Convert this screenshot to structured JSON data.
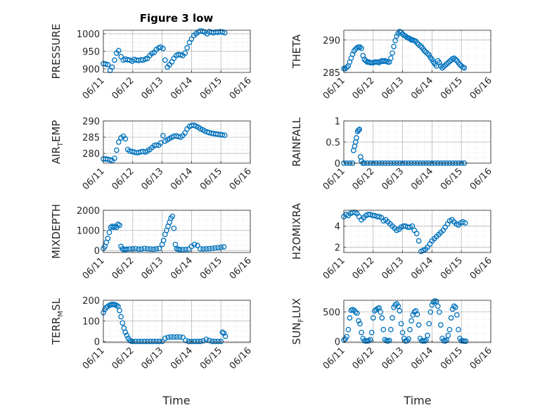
{
  "figure": {
    "title": "Figure 3 low",
    "xlabel": "Time"
  },
  "colors": {
    "marker": "#0072BD",
    "axis": "#262626",
    "grid": "#b0b0b0",
    "minor_grid": "#d6d6d6"
  },
  "chart_data": [
    {
      "type": "scatter",
      "title": "Figure 3 low",
      "ylabel": "PRESSURE",
      "ylabel_parts": [
        "PRESSURE"
      ],
      "ylim": [
        890,
        1010
      ],
      "yticks": [
        900,
        950,
        1000
      ],
      "yticklabels": [
        "900",
        "950",
        "1000"
      ],
      "xlim": [
        0,
        5
      ],
      "grid": true,
      "x": [
        0.0,
        0.08,
        0.15,
        0.23,
        0.3,
        0.38,
        0.45,
        0.52,
        0.6,
        0.68,
        0.75,
        0.83,
        0.9,
        0.98,
        1.05,
        1.13,
        1.2,
        1.28,
        1.35,
        1.43,
        1.5,
        1.58,
        1.65,
        1.73,
        1.8,
        1.88,
        1.95,
        2.03,
        2.1,
        2.18,
        2.25,
        2.33,
        2.4,
        2.48,
        2.55,
        2.63,
        2.7,
        2.78,
        2.85,
        2.93,
        3.0,
        3.08,
        3.15,
        3.23,
        3.3,
        3.38,
        3.45,
        3.53,
        3.6,
        3.68,
        3.75,
        3.83,
        3.9,
        3.98,
        4.05,
        4.13
      ],
      "y": [
        915,
        914,
        912,
        896,
        905,
        925,
        945,
        952,
        935,
        925,
        928,
        926,
        925,
        922,
        927,
        925,
        924,
        926,
        925,
        928,
        930,
        938,
        944,
        947,
        955,
        960,
        962,
        958,
        925,
        905,
        912,
        920,
        930,
        938,
        941,
        940,
        938,
        945,
        960,
        975,
        985,
        995,
        1000,
        1005,
        1008,
        1007,
        1005,
        1000,
        1006,
        1004,
        1003,
        1005,
        1004,
        1006,
        1005,
        1003
      ]
    },
    {
      "type": "scatter",
      "ylabel": "THETA",
      "ylabel_parts": [
        "THETA"
      ],
      "ylim": [
        285,
        291.5
      ],
      "yticks": [
        285,
        290
      ],
      "yticklabels": [
        "285",
        "290"
      ],
      "xlim": [
        0,
        5
      ],
      "grid": true,
      "x": [
        0.0,
        0.05,
        0.1,
        0.15,
        0.2,
        0.25,
        0.3,
        0.35,
        0.4,
        0.45,
        0.5,
        0.55,
        0.6,
        0.65,
        0.7,
        0.75,
        0.8,
        0.85,
        0.9,
        0.95,
        1.0,
        1.05,
        1.1,
        1.15,
        1.2,
        1.25,
        1.3,
        1.35,
        1.4,
        1.45,
        1.5,
        1.55,
        1.6,
        1.65,
        1.7,
        1.75,
        1.8,
        1.85,
        1.9,
        1.95,
        2.0,
        2.05,
        2.1,
        2.15,
        2.2,
        2.25,
        2.3,
        2.35,
        2.4,
        2.45,
        2.5,
        2.55,
        2.6,
        2.65,
        2.7,
        2.75,
        2.8,
        2.85,
        2.9,
        2.95,
        3.0,
        3.05,
        3.1,
        3.15,
        3.2,
        3.25,
        3.3,
        3.35,
        3.4,
        3.45,
        3.5,
        3.55,
        3.6,
        3.65,
        3.7,
        3.75,
        3.8,
        3.85,
        3.9,
        3.95,
        4.0,
        4.05,
        4.1
      ],
      "y": [
        285.6,
        285.6,
        285.8,
        286.0,
        286.6,
        287.2,
        287.8,
        288.3,
        288.6,
        288.8,
        288.9,
        288.9,
        288.7,
        287.6,
        287.0,
        286.8,
        286.6,
        286.6,
        286.5,
        286.5,
        286.5,
        286.6,
        286.6,
        286.6,
        286.5,
        286.7,
        286.8,
        286.7,
        286.8,
        286.7,
        286.6,
        286.6,
        287.2,
        288.0,
        289.0,
        289.9,
        290.6,
        291.0,
        291.3,
        291.2,
        290.9,
        290.7,
        290.6,
        290.4,
        290.3,
        290.2,
        290.0,
        290.0,
        289.9,
        289.8,
        289.5,
        289.3,
        289.1,
        288.9,
        288.6,
        288.3,
        288.1,
        287.9,
        287.7,
        287.3,
        287.0,
        286.6,
        286.3,
        286.0,
        286.8,
        286.5,
        286.0,
        285.7,
        285.9,
        286.1,
        286.3,
        286.5,
        286.7,
        286.9,
        287.1,
        287.2,
        287.0,
        286.8,
        286.5,
        286.2,
        286.0,
        285.8,
        285.7
      ]
    },
    {
      "type": "scatter",
      "ylabel": "AIR_TEMP",
      "ylabel_parts": [
        "AIR",
        "T",
        "EMP"
      ],
      "ylim": [
        277,
        290
      ],
      "yticks": [
        280,
        285,
        290
      ],
      "yticklabels": [
        "280",
        "285",
        "290"
      ],
      "xlim": [
        0,
        5
      ],
      "grid": true,
      "x": [
        0.0,
        0.08,
        0.15,
        0.23,
        0.3,
        0.38,
        0.45,
        0.52,
        0.6,
        0.68,
        0.75,
        0.83,
        0.9,
        0.98,
        1.05,
        1.13,
        1.2,
        1.28,
        1.35,
        1.43,
        1.5,
        1.58,
        1.65,
        1.73,
        1.8,
        1.88,
        1.95,
        2.03,
        2.1,
        2.18,
        2.25,
        2.33,
        2.4,
        2.48,
        2.55,
        2.63,
        2.7,
        2.78,
        2.85,
        2.93,
        3.0,
        3.08,
        3.15,
        3.23,
        3.3,
        3.38,
        3.45,
        3.53,
        3.6,
        3.68,
        3.75,
        3.83,
        3.9,
        3.98,
        4.05,
        4.13
      ],
      "y": [
        278.3,
        278.3,
        278.2,
        278.0,
        277.8,
        278.5,
        281.0,
        283.5,
        284.8,
        285.3,
        284.5,
        281.2,
        280.7,
        280.6,
        280.4,
        280.2,
        280.3,
        280.5,
        280.6,
        280.4,
        280.8,
        281.2,
        281.8,
        282.4,
        282.6,
        282.5,
        283.2,
        285.5,
        283.8,
        284.2,
        284.6,
        285.0,
        285.3,
        285.4,
        285.2,
        285.0,
        285.5,
        286.3,
        287.5,
        288.3,
        288.6,
        288.7,
        288.4,
        288.1,
        287.6,
        287.3,
        286.9,
        286.6,
        286.4,
        286.2,
        286.1,
        286.0,
        285.9,
        285.8,
        285.7,
        285.6
      ]
    },
    {
      "type": "scatter",
      "ylabel": "RAINFALL",
      "ylabel_parts": [
        "RAINFALL"
      ],
      "ylim": [
        0,
        1
      ],
      "yticks": [
        0,
        0.5,
        1
      ],
      "yticklabels": [
        "0",
        "0.5",
        "1"
      ],
      "xlim": [
        0,
        5
      ],
      "grid": true,
      "x": [
        0.0,
        0.1,
        0.2,
        0.3,
        0.33,
        0.37,
        0.4,
        0.43,
        0.47,
        0.5,
        0.53,
        0.57,
        0.6,
        0.65,
        0.7,
        0.8,
        0.9,
        1.0,
        1.1,
        1.2,
        1.3,
        1.4,
        1.5,
        1.6,
        1.7,
        1.8,
        1.9,
        2.0,
        2.1,
        2.2,
        2.3,
        2.4,
        2.5,
        2.6,
        2.7,
        2.8,
        2.9,
        3.0,
        3.1,
        3.2,
        3.3,
        3.4,
        3.5,
        3.6,
        3.7,
        3.8,
        3.9,
        4.0,
        4.1
      ],
      "y": [
        0,
        0,
        0,
        0,
        0.3,
        0.4,
        0.5,
        0.6,
        0.75,
        0.78,
        0.8,
        0.15,
        0.05,
        0,
        0,
        0,
        0,
        0,
        0,
        0,
        0,
        0,
        0,
        0,
        0,
        0,
        0,
        0,
        0,
        0,
        0,
        0,
        0,
        0,
        0,
        0,
        0,
        0,
        0,
        0,
        0,
        0,
        0,
        0,
        0,
        0,
        0,
        0,
        0
      ]
    },
    {
      "type": "scatter",
      "ylabel": "MIXDEPTH",
      "ylabel_parts": [
        "MIXDEPTH"
      ],
      "ylim": [
        -100,
        2000
      ],
      "yticks": [
        0,
        1000,
        2000
      ],
      "yticklabels": [
        "0",
        "1000",
        "2000"
      ],
      "xlim": [
        0,
        5
      ],
      "grid": true,
      "x": [
        0.0,
        0.05,
        0.1,
        0.15,
        0.2,
        0.25,
        0.3,
        0.35,
        0.4,
        0.45,
        0.5,
        0.55,
        0.6,
        0.65,
        0.7,
        0.75,
        0.8,
        0.9,
        1.0,
        1.1,
        1.2,
        1.3,
        1.4,
        1.5,
        1.6,
        1.7,
        1.8,
        1.9,
        2.0,
        2.05,
        2.1,
        2.15,
        2.2,
        2.25,
        2.3,
        2.35,
        2.4,
        2.45,
        2.5,
        2.55,
        2.6,
        2.7,
        2.8,
        2.9,
        3.0,
        3.1,
        3.2,
        3.3,
        3.4,
        3.5,
        3.6,
        3.7,
        3.8,
        3.9,
        4.0,
        4.1
      ],
      "y": [
        100,
        200,
        400,
        600,
        900,
        1150,
        1200,
        1150,
        1200,
        1150,
        1300,
        1250,
        200,
        80,
        40,
        50,
        60,
        70,
        80,
        90,
        60,
        70,
        100,
        80,
        70,
        60,
        80,
        100,
        300,
        500,
        800,
        1000,
        1200,
        1400,
        1600,
        1700,
        1100,
        300,
        80,
        60,
        50,
        40,
        50,
        60,
        200,
        300,
        250,
        80,
        70,
        80,
        90,
        100,
        120,
        140,
        160,
        180
      ]
    },
    {
      "type": "scatter",
      "ylabel": "H2OMIXRA",
      "ylabel_parts": [
        "H2OMIXRA"
      ],
      "ylim": [
        1.5,
        5.5
      ],
      "yticks": [
        2,
        4
      ],
      "yticklabels": [
        "2",
        "4"
      ],
      "xlim": [
        0,
        5
      ],
      "grid": true,
      "x": [
        0.0,
        0.08,
        0.15,
        0.23,
        0.3,
        0.38,
        0.45,
        0.52,
        0.6,
        0.68,
        0.75,
        0.83,
        0.9,
        0.98,
        1.05,
        1.13,
        1.2,
        1.28,
        1.35,
        1.43,
        1.5,
        1.58,
        1.65,
        1.73,
        1.8,
        1.88,
        1.95,
        2.03,
        2.1,
        2.18,
        2.25,
        2.33,
        2.4,
        2.48,
        2.55,
        2.63,
        2.7,
        2.78,
        2.85,
        2.93,
        3.0,
        3.08,
        3.15,
        3.23,
        3.3,
        3.38,
        3.45,
        3.53,
        3.6,
        3.68,
        3.75,
        3.83,
        3.9,
        3.98,
        4.05,
        4.13
      ],
      "y": [
        4.9,
        5.1,
        5.0,
        5.2,
        5.3,
        5.3,
        5.2,
        4.9,
        4.6,
        4.8,
        5.0,
        5.1,
        5.1,
        5.0,
        5.0,
        4.9,
        4.9,
        4.8,
        4.5,
        4.6,
        4.4,
        4.2,
        4.0,
        3.8,
        3.6,
        3.7,
        3.9,
        4.0,
        4.0,
        3.9,
        3.9,
        4.0,
        3.6,
        3.3,
        2.6,
        1.6,
        1.7,
        1.8,
        2.0,
        2.3,
        2.6,
        2.8,
        3.0,
        3.2,
        3.4,
        3.6,
        3.9,
        4.2,
        4.5,
        4.6,
        4.4,
        4.2,
        4.1,
        4.3,
        4.4,
        4.3
      ]
    },
    {
      "type": "scatter",
      "ylabel": "TERR_MSL",
      "ylabel_parts": [
        "TERR",
        "M",
        "SL"
      ],
      "ylim": [
        -5,
        200
      ],
      "yticks": [
        0,
        100,
        200
      ],
      "yticklabels": [
        "0",
        "100",
        "200"
      ],
      "xlim": [
        0,
        5
      ],
      "grid": true,
      "x": [
        0.0,
        0.05,
        0.1,
        0.15,
        0.2,
        0.25,
        0.3,
        0.35,
        0.4,
        0.45,
        0.5,
        0.55,
        0.6,
        0.65,
        0.7,
        0.75,
        0.8,
        0.85,
        0.9,
        0.95,
        1.0,
        1.1,
        1.2,
        1.3,
        1.4,
        1.5,
        1.6,
        1.7,
        1.8,
        1.9,
        2.0,
        2.1,
        2.2,
        2.3,
        2.4,
        2.5,
        2.6,
        2.7,
        2.8,
        2.9,
        3.0,
        3.1,
        3.2,
        3.3,
        3.4,
        3.5,
        3.6,
        3.7,
        3.8,
        3.9,
        4.0,
        4.05,
        4.1,
        4.15
      ],
      "y": [
        140,
        155,
        165,
        170,
        175,
        178,
        180,
        180,
        178,
        175,
        170,
        150,
        120,
        90,
        65,
        45,
        30,
        15,
        5,
        1,
        0,
        0,
        0,
        0,
        0,
        0,
        0,
        0,
        0,
        0,
        0,
        15,
        20,
        22,
        22,
        22,
        22,
        20,
        5,
        0,
        0,
        0,
        0,
        0,
        3,
        10,
        5,
        0,
        0,
        0,
        0,
        45,
        40,
        25
      ]
    },
    {
      "type": "scatter",
      "ylabel": "SUN_FLUX",
      "ylabel_parts": [
        "SUN",
        "F",
        "LUX"
      ],
      "ylim": [
        -20,
        700
      ],
      "yticks": [
        0,
        500
      ],
      "yticklabels": [
        "0",
        "500"
      ],
      "xlim": [
        0,
        5
      ],
      "grid": true,
      "x": [
        0.0,
        0.05,
        0.1,
        0.15,
        0.2,
        0.25,
        0.3,
        0.35,
        0.4,
        0.45,
        0.5,
        0.55,
        0.6,
        0.65,
        0.7,
        0.75,
        0.8,
        0.85,
        0.9,
        0.95,
        1.0,
        1.05,
        1.1,
        1.15,
        1.2,
        1.25,
        1.3,
        1.35,
        1.4,
        1.45,
        1.5,
        1.55,
        1.6,
        1.65,
        1.7,
        1.75,
        1.8,
        1.85,
        1.9,
        1.95,
        2.0,
        2.05,
        2.1,
        2.15,
        2.2,
        2.25,
        2.3,
        2.35,
        2.4,
        2.45,
        2.5,
        2.55,
        2.6,
        2.65,
        2.7,
        2.75,
        2.8,
        2.85,
        2.9,
        2.95,
        3.0,
        3.05,
        3.1,
        3.15,
        3.2,
        3.25,
        3.3,
        3.35,
        3.4,
        3.45,
        3.5,
        3.55,
        3.6,
        3.65,
        3.7,
        3.75,
        3.8,
        3.85,
        3.9,
        3.95,
        4.0,
        4.05,
        4.1,
        4.15
      ],
      "y": [
        20,
        40,
        80,
        200,
        400,
        530,
        540,
        530,
        500,
        480,
        350,
        300,
        150,
        50,
        10,
        5,
        5,
        10,
        30,
        150,
        400,
        520,
        540,
        560,
        570,
        500,
        400,
        200,
        30,
        10,
        5,
        15,
        200,
        400,
        580,
        620,
        640,
        600,
        520,
        300,
        150,
        50,
        5,
        10,
        40,
        200,
        350,
        450,
        500,
        520,
        460,
        280,
        50,
        10,
        5,
        5,
        20,
        100,
        300,
        500,
        620,
        670,
        690,
        680,
        600,
        500,
        280,
        50,
        10,
        5,
        20,
        100,
        200,
        400,
        550,
        600,
        580,
        450,
        200,
        50,
        10,
        5,
        3,
        2
      ]
    }
  ],
  "shared_xaxis": {
    "ticks": [
      0,
      1,
      2,
      3,
      4,
      5
    ],
    "ticklabels": [
      "06/11",
      "06/12",
      "06/13",
      "06/14",
      "06/15",
      "06/16"
    ]
  }
}
